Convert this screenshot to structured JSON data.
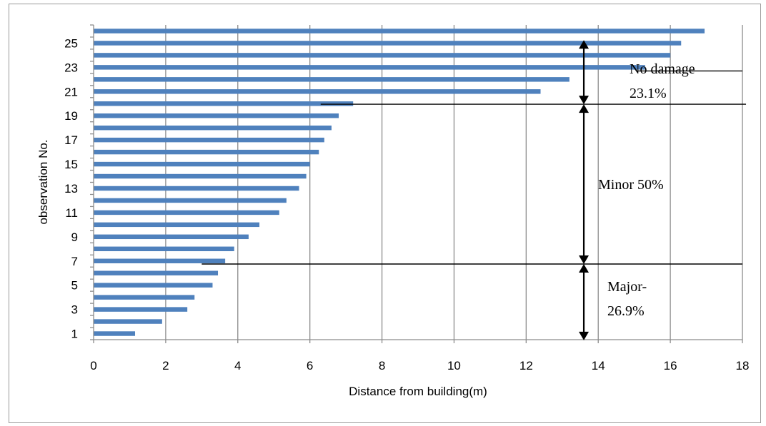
{
  "chart_data": {
    "type": "bar",
    "orientation": "horizontal",
    "title": "",
    "xlabel": "Distance from building(m)",
    "ylabel": "observation No.",
    "xlim": [
      0,
      18
    ],
    "xticks": [
      0,
      2,
      4,
      6,
      8,
      10,
      12,
      14,
      16,
      18
    ],
    "ylim": [
      0.5,
      26.5
    ],
    "yticks": [
      1,
      3,
      5,
      7,
      9,
      11,
      13,
      15,
      17,
      19,
      21,
      23,
      25
    ],
    "grid": "vertical",
    "legend": "none",
    "bar_color": "#4f81bd",
    "categories": [
      1,
      2,
      3,
      4,
      5,
      6,
      7,
      8,
      9,
      10,
      11,
      12,
      13,
      14,
      15,
      16,
      17,
      18,
      19,
      20,
      21,
      22,
      23,
      24,
      25,
      26
    ],
    "values": [
      1.15,
      1.9,
      2.6,
      2.8,
      3.3,
      3.45,
      3.65,
      3.9,
      4.3,
      4.6,
      5.15,
      5.35,
      5.7,
      5.9,
      6.0,
      6.25,
      6.4,
      6.6,
      6.8,
      7.2,
      12.4,
      13.2,
      15.3,
      16.0,
      16.3,
      16.95
    ],
    "annotations": {
      "no_damage": {
        "line1": "No damage",
        "line2": "23.1%"
      },
      "minor": {
        "text": "Minor 50%"
      },
      "major": {
        "line1": "Major-",
        "line2": "26.9%"
      }
    },
    "divider_lines": [
      {
        "name": "no-damage-minor-boundary",
        "x_start": 6.3,
        "x_end": 18.1,
        "y": 19.95
      },
      {
        "name": "minor-major-boundary",
        "x_start": 3.0,
        "x_end": 18.0,
        "y": 6.75
      },
      {
        "name": "no-damage-top-line",
        "x_start": 15.1,
        "x_end": 18.0,
        "y": 22.7
      }
    ],
    "arrows": [
      {
        "name": "no-damage-arrow",
        "x": 13.6,
        "y_from": 25.25,
        "y_to": 19.95
      },
      {
        "name": "minor-arrow",
        "x": 13.6,
        "y_from": 19.95,
        "y_to": 6.75
      },
      {
        "name": "major-arrow",
        "x": 13.6,
        "y_from": 6.75,
        "y_to": 0.45
      }
    ]
  }
}
